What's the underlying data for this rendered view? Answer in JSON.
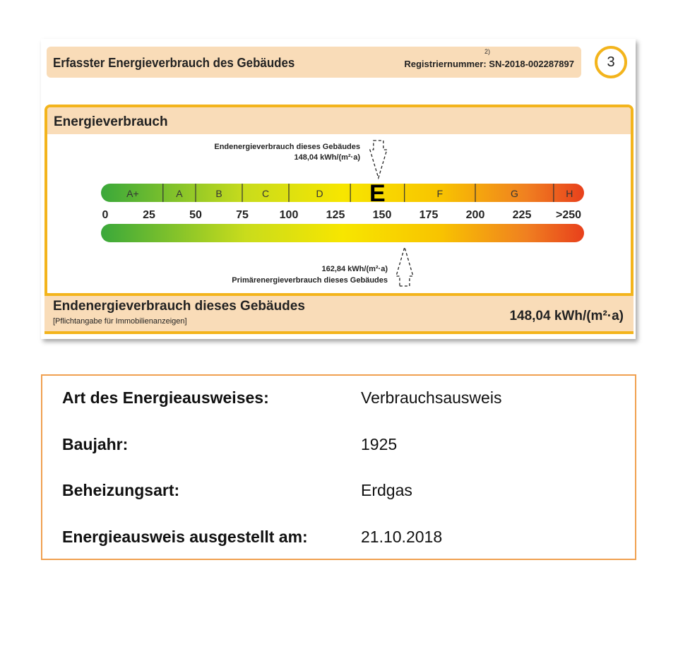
{
  "header": {
    "title": "Erfasster Energieverbrauch des Gebäudes",
    "footnote": "2)",
    "registration": "Registriernummer: SN-2018-002287897",
    "page_number": "3"
  },
  "panel": {
    "title": "Energieverbrauch",
    "end_energy_label": "Endenergieverbrauch dieses Gebäudes",
    "end_energy_value": "148,04 kWh/(m²·a)",
    "primary_energy_value": "162,84 kWh/(m²·a)",
    "primary_energy_label": "Primärenergieverbrauch dieses Gebäudes",
    "classes": [
      "A+",
      "A",
      "B",
      "C",
      "D",
      "E",
      "F",
      "G",
      "H"
    ],
    "active_class": "E",
    "ticks": [
      "0",
      "25",
      "50",
      "75",
      "100",
      "125",
      "150",
      "175",
      "200",
      "225",
      ">250"
    ],
    "end_energy": 148.04,
    "primary_energy": 162.84
  },
  "footer": {
    "title": "Endenergieverbrauch dieses Gebäudes",
    "note": "[Pflichtangabe für Immobilienanzeigen]",
    "value": "148,04 kWh/(m²·a)"
  },
  "info": [
    {
      "label": "Art des Energieausweises:",
      "value": "Verbrauchsausweis"
    },
    {
      "label": "Baujahr:",
      "value": "1925"
    },
    {
      "label": "Beheizungsart:",
      "value": "Erdgas"
    },
    {
      "label": "Energieausweis ausgestellt am:",
      "value": "21.10.2018"
    }
  ]
}
